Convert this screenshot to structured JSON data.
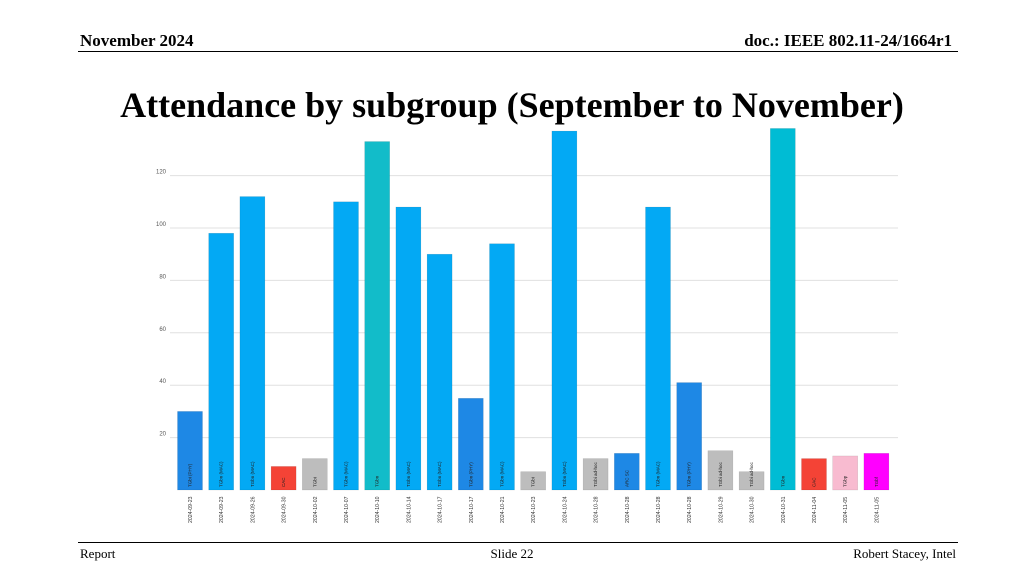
{
  "header": {
    "date": "November 2024",
    "doc": "doc.: IEEE 802.11-24/1664r1"
  },
  "title": "Attendance by subgroup (September to November)",
  "footer": {
    "left": "Report",
    "center": "Slide 22",
    "right": "Robert Stacey, Intel"
  },
  "chart_data": {
    "type": "bar",
    "title": "",
    "xlabel": "",
    "ylabel": "",
    "ylim": [
      0,
      140
    ],
    "yticks": [
      20,
      40,
      60,
      80,
      100,
      120
    ],
    "grid": true,
    "categories": [
      "2024-09-23",
      "2024-09-23",
      "2024-09-26",
      "2024-09-30",
      "2024-10-02",
      "2024-10-07",
      "2024-10-10",
      "2024-10-14",
      "2024-10-17",
      "2024-10-17",
      "2024-10-21",
      "2024-10-23",
      "2024-10-24",
      "2024-10-28",
      "2024-10-28",
      "2024-10-28",
      "2024-10-28",
      "2024-10-29",
      "2024-10-30",
      "2024-10-31",
      "2024-11-04",
      "2024-11-05",
      "2024-11-05"
    ],
    "bar_labels": [
      "TGbi (PHY)",
      "TGbn (MAC)",
      "TGbn (MAC)",
      "CAC",
      "TGbi",
      "TGbn (MAC)",
      "TGbn",
      "TGbn (MAC)",
      "TGbn (MAC)",
      "TGbn (PHY)",
      "TGbn (MAC)",
      "TGbi",
      "TGbn (MAC)",
      "TGbi ad-hoc",
      "ARC SC",
      "TGbn (MAC)",
      "TGbn (PHY)",
      "TGbi ad-hoc",
      "TGbi ad-hoc",
      "TGbn",
      "CAC",
      "TGbp",
      "TGbf"
    ],
    "values": [
      30,
      98,
      112,
      9,
      12,
      110,
      133,
      108,
      90,
      35,
      94,
      7,
      137,
      12,
      14,
      108,
      41,
      15,
      7,
      138,
      12,
      13,
      14
    ],
    "colors": [
      "#1e88e5",
      "#03a9f4",
      "#03a9f4",
      "#f44336",
      "#bdbdbd",
      "#03a9f4",
      "#12bcc9",
      "#03a9f4",
      "#03a9f4",
      "#1e88e5",
      "#03a9f4",
      "#bdbdbd",
      "#03a9f4",
      "#bdbdbd",
      "#1e88e5",
      "#03a9f4",
      "#1e88e5",
      "#bdbdbd",
      "#bdbdbd",
      "#00bcd4",
      "#f44336",
      "#f8bbd0",
      "#ff00ff"
    ]
  }
}
